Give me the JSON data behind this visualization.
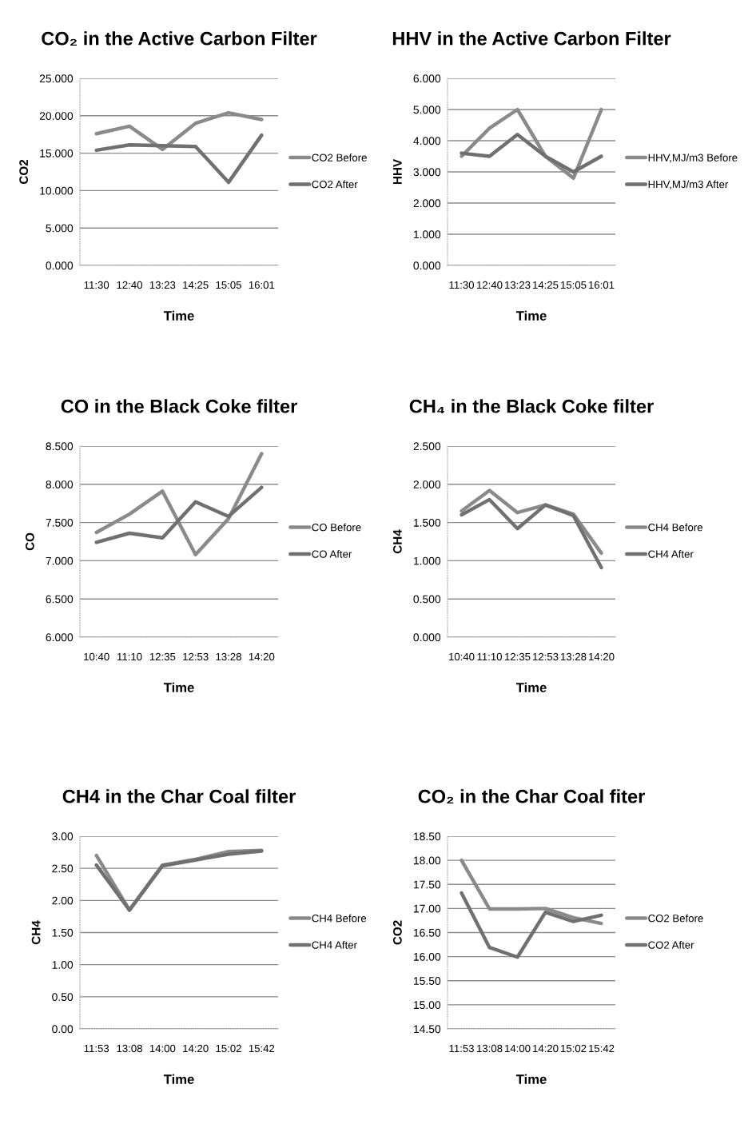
{
  "chart_data": [
    {
      "type": "line",
      "title": "CO₂ in the Active Carbon Filter",
      "xlabel": "Time",
      "ylabel": "CO2",
      "categories": [
        "11:30",
        "12:40",
        "13:23",
        "14:25",
        "15:05",
        "16:01"
      ],
      "series": [
        {
          "name": "CO2 Before",
          "color": "#8a8a8a",
          "values": [
            17.6,
            18.6,
            15.5,
            19.0,
            20.4,
            19.5
          ]
        },
        {
          "name": "CO2 After",
          "color": "#707070",
          "values": [
            15.4,
            16.1,
            16.0,
            15.9,
            11.1,
            17.4
          ]
        }
      ],
      "ylim": [
        0,
        25
      ],
      "yticks": [
        {
          "value": 0,
          "label": "0.000"
        },
        {
          "value": 5,
          "label": "5.000"
        },
        {
          "value": 10,
          "label": "10.000"
        },
        {
          "value": 15,
          "label": "15.000"
        },
        {
          "value": 20,
          "label": "20.000"
        },
        {
          "value": 25,
          "label": "25.000"
        }
      ],
      "grid": "y",
      "legend": "right",
      "marker": "none",
      "line_style": "solid"
    },
    {
      "type": "line",
      "title": "HHV in the Active Carbon Filter",
      "xlabel": "Time",
      "ylabel": "HHV",
      "categories": [
        "11:30",
        "12:40",
        "13:23",
        "14:25",
        "15:05",
        "16:01"
      ],
      "series": [
        {
          "name": "HHV,MJ/m3 Before",
          "color": "#8a8a8a",
          "values": [
            3.5,
            4.4,
            5.0,
            3.5,
            2.8,
            5.0
          ]
        },
        {
          "name": "HHV,MJ/m3 After",
          "color": "#707070",
          "values": [
            3.6,
            3.5,
            4.2,
            3.5,
            3.0,
            3.5
          ]
        }
      ],
      "ylim": [
        0,
        6
      ],
      "yticks": [
        {
          "value": 0,
          "label": "0.000"
        },
        {
          "value": 1,
          "label": "1.000"
        },
        {
          "value": 2,
          "label": "2.000"
        },
        {
          "value": 3,
          "label": "3.000"
        },
        {
          "value": 4,
          "label": "4.000"
        },
        {
          "value": 5,
          "label": "5.000"
        },
        {
          "value": 6,
          "label": "6.000"
        }
      ],
      "grid": "y",
      "legend": "right",
      "marker": "none",
      "line_style": "solid"
    },
    {
      "type": "line",
      "title": "CO in the Black Coke filter",
      "xlabel": "Time",
      "ylabel": "CO",
      "categories": [
        "10:40",
        "11:10",
        "12:35",
        "12:53",
        "13:28",
        "14:20"
      ],
      "series": [
        {
          "name": "CO Before",
          "color": "#8a8a8a",
          "values": [
            7.37,
            7.61,
            7.91,
            7.08,
            7.55,
            8.4
          ]
        },
        {
          "name": "CO After",
          "color": "#707070",
          "values": [
            7.24,
            7.36,
            7.3,
            7.77,
            7.58,
            7.96
          ]
        }
      ],
      "ylim": [
        6,
        8.5
      ],
      "yticks": [
        {
          "value": 6,
          "label": "6.000"
        },
        {
          "value": 6.5,
          "label": "6.500"
        },
        {
          "value": 7,
          "label": "7.000"
        },
        {
          "value": 7.5,
          "label": "7.500"
        },
        {
          "value": 8,
          "label": "8.000"
        },
        {
          "value": 8.5,
          "label": "8.500"
        }
      ],
      "grid": "y",
      "legend": "right",
      "marker": "none",
      "line_style": "solid"
    },
    {
      "type": "line",
      "title": "CH₄ in the Black Coke filter",
      "xlabel": "Time",
      "ylabel": "CH4",
      "categories": [
        "10:40",
        "11:10",
        "12:35",
        "12:53",
        "13:28",
        "14:20"
      ],
      "series": [
        {
          "name": "CH4 Before",
          "color": "#8a8a8a",
          "values": [
            1.65,
            1.92,
            1.63,
            1.73,
            1.61,
            1.1
          ]
        },
        {
          "name": "CH4 After",
          "color": "#707070",
          "values": [
            1.6,
            1.8,
            1.42,
            1.73,
            1.59,
            0.91
          ]
        }
      ],
      "ylim": [
        0,
        2.5
      ],
      "yticks": [
        {
          "value": 0,
          "label": "0.000"
        },
        {
          "value": 0.5,
          "label": "0.500"
        },
        {
          "value": 1,
          "label": "1.000"
        },
        {
          "value": 1.5,
          "label": "1.500"
        },
        {
          "value": 2,
          "label": "2.000"
        },
        {
          "value": 2.5,
          "label": "2.500"
        }
      ],
      "grid": "y",
      "legend": "right",
      "marker": "none",
      "line_style": "solid"
    },
    {
      "type": "line",
      "title": "CH4 in the Char Coal filter",
      "xlabel": "Time",
      "ylabel": "CH4",
      "categories": [
        "11:53",
        "13:08",
        "14:00",
        "14:20",
        "15:02",
        "15:42"
      ],
      "series": [
        {
          "name": "CH4 Before",
          "color": "#8a8a8a",
          "values": [
            2.7,
            1.85,
            2.55,
            2.64,
            2.76,
            2.78
          ]
        },
        {
          "name": "CH4 After",
          "color": "#707070",
          "values": [
            2.55,
            1.85,
            2.54,
            2.63,
            2.72,
            2.77
          ]
        }
      ],
      "ylim": [
        0,
        3
      ],
      "yticks": [
        {
          "value": 0,
          "label": "0.00"
        },
        {
          "value": 0.5,
          "label": "0.50"
        },
        {
          "value": 1,
          "label": "1.00"
        },
        {
          "value": 1.5,
          "label": "1.50"
        },
        {
          "value": 2,
          "label": "2.00"
        },
        {
          "value": 2.5,
          "label": "2.50"
        },
        {
          "value": 3,
          "label": "3.00"
        }
      ],
      "grid": "y",
      "legend": "right",
      "marker": "none",
      "line_style": "solid"
    },
    {
      "type": "line",
      "title": "CO₂ in the Char Coal fiter",
      "xlabel": "Time",
      "ylabel": "CO2",
      "categories": [
        "11:53",
        "13:08",
        "14:00",
        "14:20",
        "15:02",
        "15:42"
      ],
      "series": [
        {
          "name": "CO2 Before",
          "color": "#8a8a8a",
          "values": [
            18.0,
            16.99,
            16.99,
            17.0,
            16.81,
            16.69
          ]
        },
        {
          "name": "CO2 After",
          "color": "#707070",
          "values": [
            17.32,
            16.19,
            15.99,
            16.92,
            16.73,
            16.86
          ]
        }
      ],
      "ylim": [
        14.5,
        18.5
      ],
      "yticks": [
        {
          "value": 14.5,
          "label": "14.50"
        },
        {
          "value": 15,
          "label": "15.00"
        },
        {
          "value": 15.5,
          "label": "15.50"
        },
        {
          "value": 16,
          "label": "16.00"
        },
        {
          "value": 16.5,
          "label": "16.50"
        },
        {
          "value": 17,
          "label": "17.00"
        },
        {
          "value": 17.5,
          "label": "17.50"
        },
        {
          "value": 18,
          "label": "18.00"
        },
        {
          "value": 18.5,
          "label": "18.50"
        }
      ],
      "grid": "y",
      "legend": "right",
      "marker": "none",
      "line_style": "solid"
    }
  ]
}
